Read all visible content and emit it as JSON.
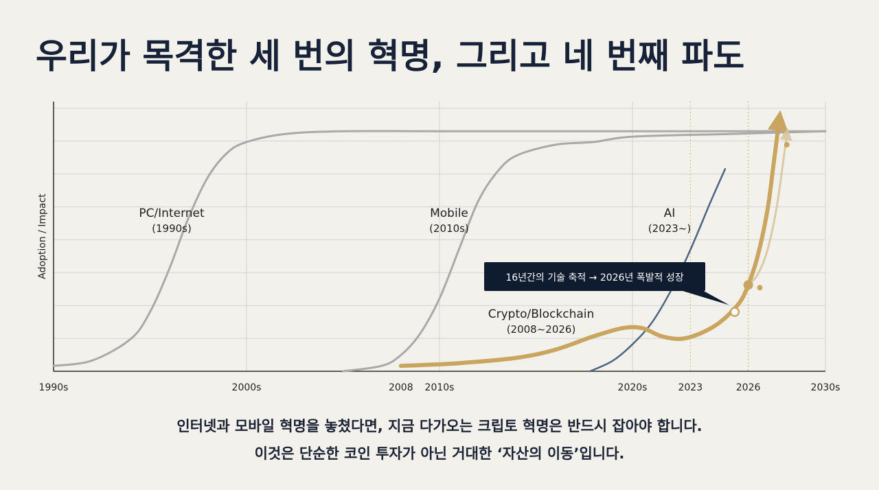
{
  "title": "우리가 목격한 세 번의 혁명, 그리고 네 번째 파도",
  "caption": {
    "line1": "인터넷과 모바일 혁명을 놓쳤다면, 지금 다가오는 크립토 혁명은 반드시 잡아야 합니다.",
    "line2": "이것은 단순한 코인 투자가 아닌 거대한 ‘자산의 이동’입니다."
  },
  "colors": {
    "background": "#f3f1ec",
    "grid": "#d3d3d3",
    "axis": "#2a2a2a",
    "grey_curve": "#a9a9a9",
    "ai_curve": "#4c6480",
    "crypto_curve": "#c9a560",
    "callout_bg": "#0f1b2e",
    "callout_text": "#ffffff"
  },
  "chart_data": {
    "type": "line",
    "ylabel": "Adoption / Impact",
    "xlim": [
      1990,
      2030
    ],
    "ylim": [
      0,
      1
    ],
    "x_ticks": [
      {
        "label": "1990s",
        "x": 1990
      },
      {
        "label": "2000s",
        "x": 2000
      },
      {
        "label": "2008",
        "x": 2008
      },
      {
        "label": "2010s",
        "x": 2010
      },
      {
        "label": "2020s",
        "x": 2020
      },
      {
        "label": "2023",
        "x": 2023
      },
      {
        "label": "2026",
        "x": 2026
      },
      {
        "label": "2030s",
        "x": 2030
      }
    ],
    "vertical_markers": [
      2023,
      2026
    ],
    "series": [
      {
        "name": "PC/Internet",
        "period": "(1990s)",
        "style": "grey",
        "points": [
          [
            1990,
            0.02
          ],
          [
            1992,
            0.04
          ],
          [
            1994,
            0.12
          ],
          [
            1995,
            0.22
          ],
          [
            1996,
            0.38
          ],
          [
            1997,
            0.57
          ],
          [
            1998,
            0.72
          ],
          [
            1999,
            0.81
          ],
          [
            2000,
            0.85
          ],
          [
            2002,
            0.88
          ],
          [
            2005,
            0.89
          ],
          [
            2010,
            0.89
          ],
          [
            2020,
            0.89
          ],
          [
            2030,
            0.89
          ]
        ]
      },
      {
        "name": "Mobile",
        "period": "(2010s)",
        "style": "grey",
        "points": [
          [
            2005,
            0.0
          ],
          [
            2007,
            0.02
          ],
          [
            2008,
            0.06
          ],
          [
            2009,
            0.14
          ],
          [
            2010,
            0.27
          ],
          [
            2011,
            0.45
          ],
          [
            2012,
            0.63
          ],
          [
            2013,
            0.74
          ],
          [
            2014,
            0.8
          ],
          [
            2016,
            0.84
          ],
          [
            2018,
            0.85
          ],
          [
            2020,
            0.87
          ],
          [
            2025,
            0.88
          ],
          [
            2030,
            0.89
          ]
        ]
      },
      {
        "name": "AI",
        "period": "(2023~)",
        "style": "ai",
        "points": [
          [
            2017.8,
            0.0
          ],
          [
            2019,
            0.04
          ],
          [
            2020,
            0.1
          ],
          [
            2021,
            0.18
          ],
          [
            2022,
            0.3
          ],
          [
            2023,
            0.45
          ],
          [
            2024,
            0.62
          ],
          [
            2024.8,
            0.75
          ]
        ]
      },
      {
        "name": "Crypto/Blockchain",
        "period": "(2008~2026)",
        "style": "crypto",
        "points": [
          [
            2008,
            0.02
          ],
          [
            2011,
            0.03
          ],
          [
            2014,
            0.05
          ],
          [
            2016,
            0.08
          ],
          [
            2018,
            0.13
          ],
          [
            2019.5,
            0.16
          ],
          [
            2020.5,
            0.16
          ],
          [
            2021.5,
            0.13
          ],
          [
            2022.5,
            0.12
          ],
          [
            2023.5,
            0.14
          ],
          [
            2024.5,
            0.18
          ],
          [
            2025.5,
            0.25
          ],
          [
            2026,
            0.32
          ],
          [
            2026.5,
            0.43
          ],
          [
            2027,
            0.6
          ],
          [
            2027.3,
            0.76
          ],
          [
            2027.6,
            0.93
          ]
        ]
      },
      {
        "name": "Crypto projection",
        "period": "",
        "style": "crypto-faint",
        "points": [
          [
            2026,
            0.32
          ],
          [
            2026.5,
            0.36
          ],
          [
            2027,
            0.45
          ],
          [
            2027.5,
            0.62
          ],
          [
            2028,
            0.88
          ]
        ]
      }
    ],
    "markers": [
      {
        "x": 2025.3,
        "y": 0.22,
        "kind": "open"
      },
      {
        "x": 2026,
        "y": 0.32,
        "kind": "filled"
      },
      {
        "x": 2026.6,
        "y": 0.31,
        "kind": "dot"
      },
      {
        "x": 2028,
        "y": 0.84,
        "kind": "dot"
      }
    ],
    "callout": {
      "text": "16년간의 기술 축적 → 2026년 폭발적 성장",
      "points_to": [
        2025.3,
        0.22
      ]
    }
  }
}
